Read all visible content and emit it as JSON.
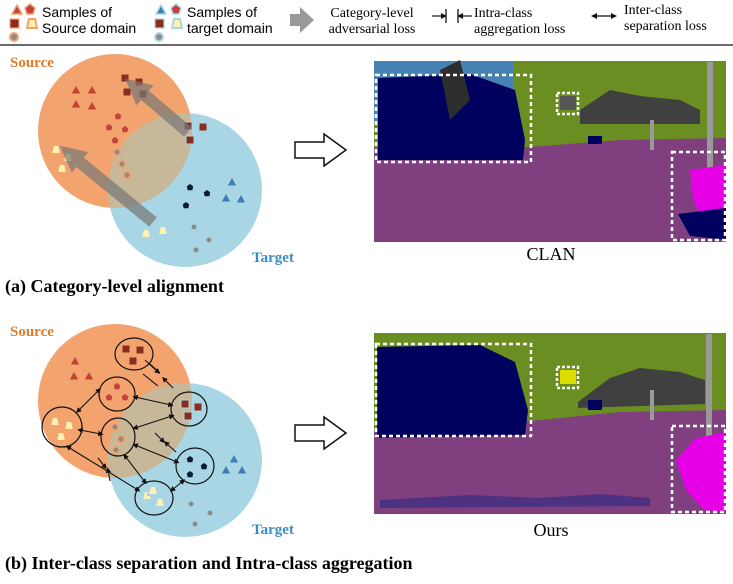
{
  "legend": {
    "source_samples": "Samples of\nSource domain",
    "target_samples": "Samples of\ntarget domain",
    "category_adversarial": "Category-level\nadversarial loss",
    "intra_class": "Intra-class\naggregation loss",
    "inter_class": "Inter-class\nseparation loss"
  },
  "panel_a": {
    "source_label": "Source",
    "target_label": "Target",
    "method_label": "CLAN",
    "caption": "(a) Category-level alignment"
  },
  "panel_b": {
    "source_label": "Source",
    "target_label": "Target",
    "method_label": "Ours",
    "caption": "(b) Inter-class separation and Intra-class aggregation"
  },
  "colors": {
    "source_domain": "#f2a36e",
    "target_domain": "#a9d6e5",
    "overlap": "#c7b89a",
    "label_orange": "#e07b2a",
    "label_blue": "#3a8ec0",
    "seg_vegetation": "#6b8e23",
    "seg_road": "#804080",
    "seg_sky": "#4682b4",
    "seg_building_dark": "#00005e",
    "seg_sidewalk": "#e600e6",
    "seg_pole": "#999999",
    "seg_sign": "#dcdc00"
  }
}
